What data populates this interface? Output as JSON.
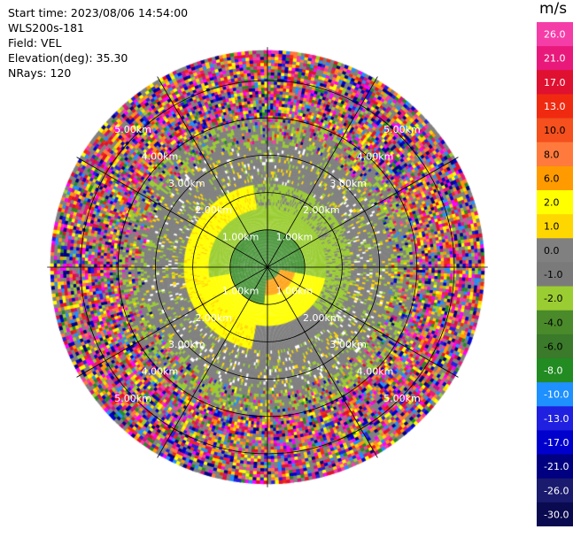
{
  "header": {
    "start_time": "Start time: 2023/08/06 14:54:00",
    "station": "WLS200s-181",
    "field": "Field: VEL",
    "elevation": "Elevation(deg): 35.30",
    "nrays": "NRays: 120"
  },
  "colorbar": {
    "unit": "m/s",
    "ticks": [
      "26.0",
      "21.0",
      "17.0",
      "13.0",
      "10.0",
      "8.0",
      "6.0",
      "2.0",
      "1.0",
      "0.0",
      "-1.0",
      "-2.0",
      "-4.0",
      "-6.0",
      "-8.0",
      "-10.0",
      "-13.0",
      "-17.0",
      "-21.0",
      "-26.0",
      "-30.0"
    ],
    "colors": [
      "#f53da8",
      "#e8197a",
      "#e01030",
      "#f02a10",
      "#f5501e",
      "#ff7a3c",
      "#ff9b00",
      "#ffff00",
      "#ffd700",
      "#808080",
      "#7a7a7a",
      "#9acd32",
      "#4a8a2a",
      "#3a7a2a",
      "#228b22",
      "#1e90ff",
      "#2020e0",
      "#0000cd",
      "#000080",
      "#1a1a6e",
      "#0a0a50"
    ]
  },
  "chart_data": {
    "type": "ppi",
    "field": "VEL",
    "units": "m/s",
    "elevation_deg": 35.3,
    "nrays": 120,
    "range_rings_km": [
      1,
      2,
      3,
      4,
      5
    ],
    "range_labels": [
      "1.00km",
      "2.00km",
      "3.00km",
      "4.00km",
      "5.00km"
    ],
    "max_range_km": 5.8,
    "spokes_deg": [
      0,
      30,
      60,
      90,
      120,
      150
    ],
    "regions": [
      {
        "desc": "center core",
        "r_km": [
          0,
          1.0
        ],
        "velocity_ms": -4.0
      },
      {
        "desc": "inner ring north",
        "r_km": [
          0.9,
          1.6
        ],
        "velocity_ms": -2.0
      },
      {
        "desc": "west/south ring",
        "r_km": [
          1.4,
          2.2
        ],
        "velocity_ms": 1.5
      },
      {
        "desc": "southeast lobe",
        "r_km": [
          0.3,
          1.0
        ],
        "velocity_ms": 6.0
      },
      {
        "desc": "gray background",
        "r_km": [
          1.5,
          3.5
        ],
        "velocity_ms": 0.0
      },
      {
        "desc": "noise",
        "r_km": [
          3.2,
          5.8
        ],
        "velocity_ms": "mixed"
      }
    ]
  }
}
